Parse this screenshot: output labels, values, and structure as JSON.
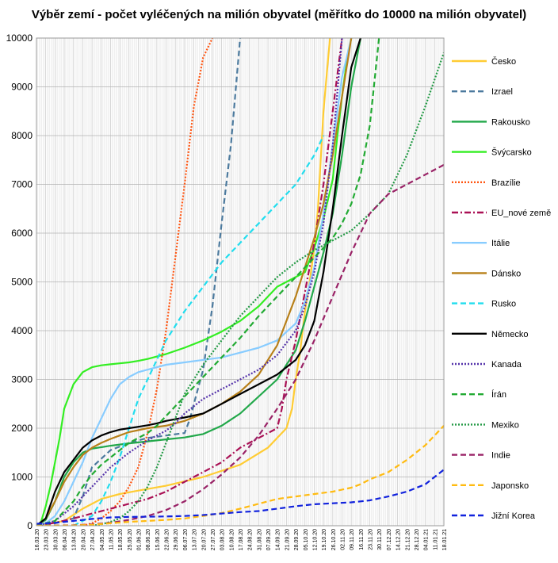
{
  "chart_data": {
    "type": "line",
    "title": "Výběr zemí - počet vyléčených na milión obyvatel (měřítko do 10000 na milión obyvatel)",
    "xlabel": "",
    "ylabel": "",
    "ylim": [
      0,
      10000
    ],
    "yticks": [
      0,
      1000,
      2000,
      3000,
      4000,
      5000,
      6000,
      7000,
      8000,
      9000,
      10000
    ],
    "grid": true,
    "legend_position": "right",
    "x_tick_labels": [
      "16.03.20",
      "23.03.20",
      "30.03.20",
      "06.04.20",
      "13.04.20",
      "20.04.20",
      "27.04.20",
      "04.05.20",
      "11.05.20",
      "18.05.20",
      "25.05.20",
      "01.06.20",
      "08.06.20",
      "15.06.20",
      "22.06.20",
      "29.06.20",
      "06.07.20",
      "13.07.20",
      "20.07.20",
      "27.07.20",
      "03.08.20",
      "10.08.20",
      "17.08.20",
      "24.08.20",
      "31.08.20",
      "07.09.20",
      "14.09.20",
      "21.09.20",
      "28.09.20",
      "05.10.20",
      "12.10.20",
      "19.10.20",
      "26.10.20",
      "02.11.20",
      "09.11.20",
      "16.11.20",
      "23.11.20",
      "30.11.20",
      "07.12.20",
      "14.12.20",
      "21.12.20",
      "28.12.20",
      "04.01.21",
      "11.01.21",
      "18.01.21"
    ],
    "series": [
      {
        "name": "Česko",
        "color": "#ffcc33",
        "dash": "solid",
        "x": [
          0,
          3,
          5,
          7,
          9,
          11,
          14,
          18,
          22,
          25,
          26,
          27,
          27.6,
          28,
          28.5,
          29,
          29.5,
          30,
          30.4,
          31,
          31.7
        ],
        "values": [
          0,
          100,
          350,
          550,
          650,
          720,
          820,
          1000,
          1250,
          1600,
          1800,
          2000,
          2400,
          3000,
          3600,
          4400,
          5000,
          5700,
          6500,
          8500,
          10000
        ]
      },
      {
        "name": "Izrael",
        "color": "#4c7a9e",
        "dash": "dashed",
        "x": [
          0,
          2,
          4,
          5,
          6,
          8,
          10,
          12,
          14,
          16,
          16.6,
          17,
          18,
          19,
          20,
          21,
          22
        ],
        "values": [
          0,
          50,
          150,
          600,
          1200,
          1550,
          1700,
          1800,
          1850,
          1900,
          2200,
          2500,
          3200,
          4500,
          6200,
          7800,
          10000
        ]
      },
      {
        "name": "Rakousko",
        "color": "#22a84a",
        "dash": "solid",
        "x": [
          0,
          1,
          2,
          3,
          4,
          5,
          6,
          8,
          10,
          12,
          14,
          16,
          18,
          20,
          22,
          24,
          26,
          28,
          29,
          30,
          31,
          32,
          33,
          34,
          35
        ],
        "values": [
          0,
          120,
          500,
          1000,
          1300,
          1500,
          1580,
          1640,
          1690,
          1730,
          1770,
          1810,
          1880,
          2050,
          2300,
          2650,
          3000,
          3600,
          4200,
          4900,
          5600,
          6400,
          7600,
          9000,
          10000
        ]
      },
      {
        "name": "Švýcarsko",
        "color": "#33ee22",
        "dash": "solid",
        "x": [
          0,
          0.5,
          1,
          1.5,
          2,
          2.5,
          3,
          4,
          5,
          6,
          7,
          8,
          9,
          10,
          11,
          12,
          13,
          14,
          16,
          18,
          20,
          22,
          24,
          26,
          28,
          29,
          30,
          31,
          32,
          32.5,
          33,
          33.5,
          34
        ],
        "values": [
          0,
          80,
          400,
          800,
          1300,
          1800,
          2400,
          2900,
          3150,
          3250,
          3290,
          3310,
          3330,
          3350,
          3380,
          3420,
          3470,
          3520,
          3650,
          3800,
          3980,
          4200,
          4500,
          4900,
          5100,
          5200,
          5700,
          6300,
          7100,
          8000,
          8800,
          9500,
          10000
        ]
      },
      {
        "name": "Brazílie",
        "color": "#ff5511",
        "dash": "dotted",
        "x": [
          5,
          6,
          7,
          8,
          9,
          10,
          11,
          12,
          13,
          14,
          15,
          16,
          17,
          18,
          19
        ],
        "values": [
          0,
          50,
          150,
          300,
          500,
          800,
          1200,
          1900,
          2800,
          4000,
          5500,
          7000,
          8600,
          9600,
          10000
        ]
      },
      {
        "name": "EU_nové země",
        "color": "#aa1155",
        "dash": "dashdot",
        "x": [
          0,
          2,
          4,
          6,
          8,
          10,
          12,
          14,
          16,
          18,
          20,
          22,
          24,
          26,
          26.5,
          27,
          28,
          29,
          30,
          31,
          32,
          33
        ],
        "values": [
          0,
          60,
          150,
          250,
          350,
          450,
          550,
          700,
          900,
          1100,
          1300,
          1600,
          1800,
          2000,
          2400,
          3000,
          3800,
          4800,
          5800,
          7000,
          8500,
          10000
        ]
      },
      {
        "name": "Itálie",
        "color": "#88ccff",
        "dash": "solid",
        "x": [
          0,
          1,
          2,
          3,
          4,
          5,
          6,
          7,
          8,
          9,
          10,
          11,
          12,
          14,
          16,
          18,
          20,
          22,
          24,
          26,
          28,
          29,
          30,
          31,
          32,
          33,
          34
        ],
        "values": [
          0,
          50,
          200,
          500,
          900,
          1300,
          1800,
          2200,
          2600,
          2900,
          3050,
          3150,
          3200,
          3300,
          3350,
          3400,
          3450,
          3550,
          3650,
          3800,
          4150,
          4600,
          5300,
          6400,
          7800,
          9200,
          10000
        ]
      },
      {
        "name": "Dánsko",
        "color": "#b8801a",
        "dash": "solid",
        "x": [
          0,
          1,
          2,
          3,
          4,
          5,
          6,
          7,
          8,
          9,
          10,
          12,
          14,
          16,
          18,
          20,
          22,
          24,
          26,
          28,
          29,
          30,
          31,
          32,
          33,
          34
        ],
        "values": [
          0,
          150,
          500,
          900,
          1200,
          1450,
          1600,
          1700,
          1780,
          1850,
          1920,
          2000,
          2050,
          2150,
          2300,
          2500,
          2750,
          3100,
          3700,
          4700,
          5300,
          5900,
          6600,
          7600,
          8800,
          10000
        ]
      },
      {
        "name": "Rusko",
        "color": "#22ddee",
        "dash": "dashed",
        "x": [
          4,
          5,
          6,
          7,
          8,
          9,
          10,
          11,
          12,
          14,
          16,
          18,
          20,
          22,
          24,
          26,
          28,
          30,
          31
        ],
        "values": [
          0,
          100,
          200,
          500,
          900,
          1400,
          2000,
          2600,
          3000,
          3800,
          4400,
          4900,
          5400,
          5800,
          6200,
          6600,
          7000,
          7600,
          8000
        ]
      },
      {
        "name": "Německo",
        "color": "#000000",
        "dash": "solid",
        "x": [
          0,
          1,
          2,
          3,
          4,
          5,
          6,
          7,
          8,
          9,
          10,
          11,
          12,
          13,
          14,
          16,
          18,
          20,
          22,
          24,
          26,
          28,
          29,
          30,
          31,
          32,
          33,
          34,
          35
        ],
        "values": [
          0,
          150,
          700,
          1100,
          1350,
          1600,
          1750,
          1850,
          1920,
          1970,
          2000,
          2030,
          2060,
          2100,
          2150,
          2220,
          2300,
          2500,
          2700,
          2900,
          3100,
          3400,
          3700,
          4200,
          5200,
          6500,
          8000,
          9400,
          10000
        ]
      },
      {
        "name": "Kanada",
        "color": "#5533aa",
        "dash": "dotted",
        "x": [
          0,
          2,
          4,
          6,
          8,
          10,
          12,
          13,
          14,
          15,
          16,
          18,
          20,
          22,
          24,
          26,
          28,
          29,
          30,
          31,
          32,
          33
        ],
        "values": [
          0,
          100,
          400,
          800,
          1200,
          1500,
          1750,
          1850,
          1950,
          2100,
          2300,
          2600,
          2800,
          3000,
          3200,
          3500,
          4000,
          4500,
          5200,
          6200,
          7800,
          10000
        ]
      },
      {
        "name": "Írán",
        "color": "#22aa33",
        "dash": "dashed",
        "x": [
          0,
          2,
          4,
          5,
          6,
          7,
          8,
          9,
          10,
          11,
          12,
          13,
          14,
          15,
          16,
          17,
          18,
          19,
          20,
          21,
          22,
          24,
          26,
          28,
          30,
          32,
          33,
          34,
          35,
          36,
          37
        ],
        "values": [
          0,
          100,
          500,
          800,
          1050,
          1250,
          1400,
          1550,
          1700,
          1800,
          1900,
          2050,
          2250,
          2450,
          2650,
          2850,
          3050,
          3250,
          3450,
          3650,
          3850,
          4300,
          4700,
          5100,
          5500,
          5900,
          6200,
          6600,
          7200,
          8200,
          10000
        ]
      },
      {
        "name": "Mexiko",
        "color": "#229944",
        "dash": "dotted",
        "x": [
          6,
          7,
          8,
          9,
          10,
          11,
          12,
          13,
          14,
          15,
          16,
          18,
          20,
          22,
          24,
          26,
          28,
          30,
          32,
          34,
          36,
          38,
          40,
          42,
          44
        ],
        "values": [
          0,
          30,
          80,
          150,
          300,
          500,
          800,
          1200,
          1700,
          2200,
          2700,
          3300,
          3800,
          4300,
          4700,
          5100,
          5400,
          5650,
          5850,
          6050,
          6400,
          6800,
          7600,
          8600,
          9700
        ]
      },
      {
        "name": "Indie",
        "color": "#992266",
        "dash": "dashed",
        "x": [
          0,
          4,
          6,
          8,
          10,
          12,
          14,
          16,
          18,
          20,
          22,
          24,
          26,
          28,
          30,
          32,
          34,
          36,
          38,
          40,
          42,
          44
        ],
        "values": [
          0,
          10,
          30,
          60,
          120,
          200,
          320,
          500,
          750,
          1050,
          1400,
          1850,
          2400,
          3000,
          3800,
          4700,
          5600,
          6400,
          6800,
          7000,
          7200,
          7400
        ]
      },
      {
        "name": "Japonsko",
        "color": "#ffbb11",
        "dash": "dashed",
        "x": [
          0,
          4,
          6,
          8,
          10,
          12,
          14,
          16,
          18,
          20,
          22,
          24,
          26,
          28,
          30,
          32,
          34,
          35,
          36,
          38,
          40,
          42,
          44
        ],
        "values": [
          0,
          5,
          20,
          50,
          80,
          100,
          120,
          150,
          200,
          260,
          350,
          450,
          550,
          600,
          650,
          700,
          780,
          850,
          950,
          1100,
          1350,
          1650,
          2050
        ]
      },
      {
        "name": "Jižní Korea",
        "color": "#1122dd",
        "dash": "dashed",
        "x": [
          0,
          2,
          4,
          6,
          8,
          10,
          12,
          14,
          16,
          18,
          20,
          22,
          24,
          26,
          28,
          30,
          32,
          34,
          35,
          36,
          38,
          40,
          42,
          43,
          44
        ],
        "values": [
          40,
          60,
          100,
          140,
          170,
          180,
          185,
          190,
          200,
          220,
          250,
          280,
          300,
          350,
          400,
          440,
          460,
          480,
          500,
          520,
          600,
          700,
          850,
          1000,
          1150
        ]
      }
    ]
  }
}
